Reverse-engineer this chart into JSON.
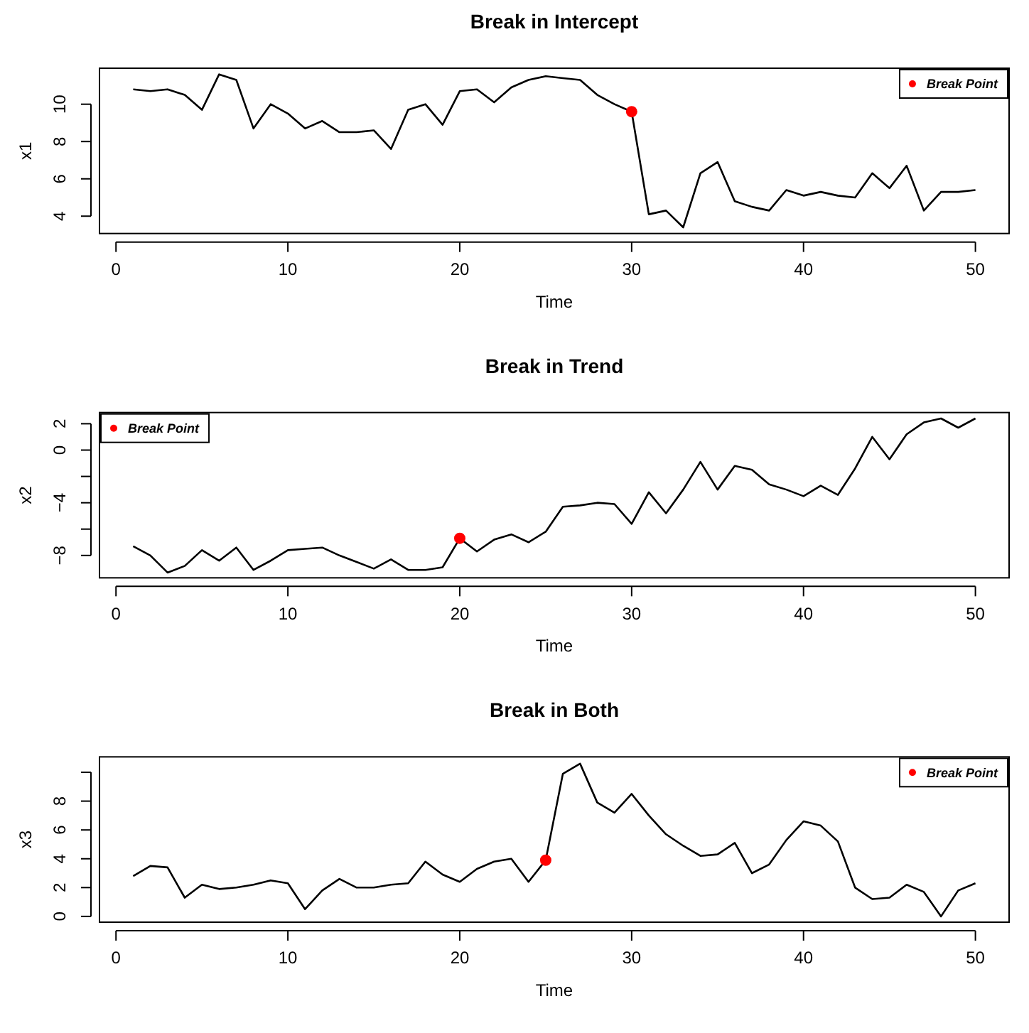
{
  "chart_data": [
    {
      "type": "line",
      "title": "Break in Intercept",
      "xlabel": "Time",
      "ylabel": "x1",
      "xlim": [
        -0.96,
        51.96
      ],
      "xticks": [
        0,
        10,
        20,
        30,
        40,
        50
      ],
      "ylim": [
        3.07,
        11.93
      ],
      "yticks": [
        4,
        6,
        8,
        10
      ],
      "legend": "top right",
      "series": [
        {
          "type": "line",
          "color": "#000000",
          "x": [
            1,
            2,
            3,
            4,
            5,
            6,
            7,
            8,
            9,
            10,
            11,
            12,
            13,
            14,
            15,
            16,
            17,
            18,
            19,
            20,
            21,
            22,
            23,
            24,
            25,
            26,
            27,
            28,
            29,
            30,
            31,
            32,
            33,
            34,
            35,
            36,
            37,
            38,
            39,
            40,
            41,
            42,
            43,
            44,
            45,
            46,
            47,
            48,
            49,
            50
          ],
          "values": [
            10.8,
            10.7,
            10.8,
            10.5,
            9.7,
            11.6,
            11.3,
            8.7,
            10.0,
            9.5,
            8.7,
            9.1,
            8.5,
            8.5,
            8.6,
            7.6,
            9.7,
            10.0,
            8.9,
            10.7,
            10.8,
            10.1,
            10.9,
            11.3,
            11.5,
            11.4,
            11.3,
            10.5,
            10.0,
            9.6,
            4.1,
            4.3,
            3.4,
            6.3,
            6.9,
            4.8,
            4.5,
            4.3,
            5.4,
            5.1,
            5.3,
            5.1,
            5.0,
            6.3,
            5.5,
            6.7,
            4.3,
            5.3,
            5.3,
            5.4
          ]
        },
        {
          "type": "scatter",
          "name": "Break Point",
          "color": "#ff0000",
          "x": [
            30
          ],
          "values": [
            9.6
          ]
        }
      ]
    },
    {
      "type": "line",
      "title": "Break in Trend",
      "xlabel": "Time",
      "ylabel": "x2",
      "xlim": [
        -0.96,
        51.96
      ],
      "xticks": [
        0,
        10,
        20,
        30,
        40,
        50
      ],
      "ylim": [
        -9.7,
        2.85
      ],
      "yticks": [
        -8,
        {
          "value": -6,
          "label": null
        },
        -4,
        {
          "value": -2,
          "label": null
        },
        0,
        2
      ],
      "legend": "top left",
      "series": [
        {
          "type": "line",
          "color": "#000000",
          "x": [
            1,
            2,
            3,
            4,
            5,
            6,
            7,
            8,
            9,
            10,
            11,
            12,
            13,
            14,
            15,
            16,
            17,
            18,
            19,
            20,
            21,
            22,
            23,
            24,
            25,
            26,
            27,
            28,
            29,
            30,
            31,
            32,
            33,
            34,
            35,
            36,
            37,
            38,
            39,
            40,
            41,
            42,
            43,
            44,
            45,
            46,
            47,
            48,
            49,
            50
          ],
          "values": [
            -7.3,
            -8.0,
            -9.3,
            -8.8,
            -7.6,
            -8.4,
            -7.4,
            -9.1,
            -8.4,
            -7.6,
            -7.5,
            -7.4,
            -8.0,
            -8.5,
            -9.0,
            -8.3,
            -9.1,
            -9.1,
            -8.9,
            -6.7,
            -7.7,
            -6.8,
            -6.4,
            -7.0,
            -6.2,
            -4.3,
            -4.2,
            -4.0,
            -4.1,
            -5.6,
            -3.2,
            -4.8,
            -3.0,
            -0.9,
            -3.0,
            -1.2,
            -1.5,
            -2.6,
            -3.0,
            -3.5,
            -2.7,
            -3.4,
            -1.4,
            1.0,
            -0.7,
            1.2,
            2.1,
            2.4,
            1.7,
            2.4
          ]
        },
        {
          "type": "scatter",
          "name": "Break Point",
          "color": "#ff0000",
          "x": [
            20
          ],
          "values": [
            -6.7
          ]
        }
      ]
    },
    {
      "type": "line",
      "title": "Break in Both",
      "xlabel": "Time",
      "ylabel": "x3",
      "xlim": [
        -0.96,
        51.96
      ],
      "xticks": [
        0,
        10,
        20,
        30,
        40,
        50
      ],
      "ylim": [
        -0.4,
        11.07
      ],
      "yticks": [
        0,
        2,
        4,
        6,
        8,
        {
          "value": 10,
          "label": null
        }
      ],
      "legend": "top right",
      "series": [
        {
          "type": "line",
          "color": "#000000",
          "x": [
            1,
            2,
            3,
            4,
            5,
            6,
            7,
            8,
            9,
            10,
            11,
            12,
            13,
            14,
            15,
            16,
            17,
            18,
            19,
            20,
            21,
            22,
            23,
            24,
            25,
            26,
            27,
            28,
            29,
            30,
            31,
            32,
            33,
            34,
            35,
            36,
            37,
            38,
            39,
            40,
            41,
            42,
            43,
            44,
            45,
            46,
            47,
            48,
            49,
            50
          ],
          "values": [
            2.8,
            3.5,
            3.4,
            1.3,
            2.2,
            1.9,
            2.0,
            2.2,
            2.5,
            2.3,
            0.5,
            1.8,
            2.6,
            2.0,
            2.0,
            2.2,
            2.3,
            3.8,
            2.9,
            2.4,
            3.3,
            3.8,
            4.0,
            2.4,
            3.9,
            9.9,
            10.6,
            7.9,
            7.2,
            8.5,
            7.0,
            5.7,
            4.9,
            4.2,
            4.3,
            5.1,
            3.0,
            3.6,
            5.3,
            6.6,
            6.3,
            5.2,
            2.0,
            1.2,
            1.3,
            2.2,
            1.7,
            0.0,
            1.8,
            2.3
          ]
        },
        {
          "type": "scatter",
          "name": "Break Point",
          "color": "#ff0000",
          "x": [
            25
          ],
          "values": [
            3.9
          ]
        }
      ]
    }
  ]
}
